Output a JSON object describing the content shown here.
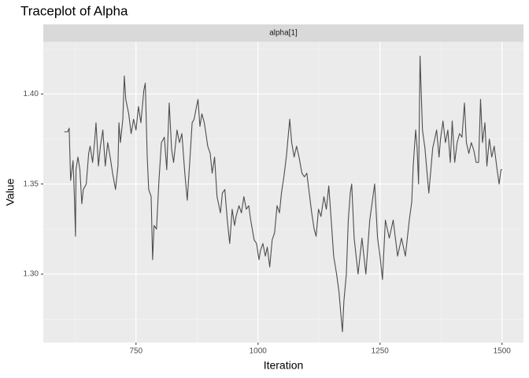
{
  "chart_data": {
    "type": "line",
    "title": "Traceplot of Alpha",
    "facet": "alpha[1]",
    "x_label": "Iteration",
    "y_label": "Value",
    "xlim": [
      560,
      1544
    ],
    "ylim": [
      1.262,
      1.429
    ],
    "xticks": [
      750,
      1000,
      1250,
      1500
    ],
    "yticks": [
      {
        "value": 1.3,
        "label": "1.30"
      },
      {
        "value": 1.35,
        "label": "1.35"
      },
      {
        "value": 1.4,
        "label": "1.40"
      }
    ],
    "grid": true,
    "series": [
      {
        "name": "alpha[1]",
        "color": "#4d4d4d",
        "x": [
          603,
          610,
          613,
          616,
          621,
          624,
          626,
          627,
          631,
          635,
          639,
          642,
          648,
          653,
          656,
          661,
          665,
          668,
          673,
          677,
          682,
          687,
          692,
          697,
          702,
          708,
          713,
          715,
          718,
          723,
          726,
          729,
          735,
          740,
          745,
          750,
          755,
          760,
          766,
          769,
          773,
          776,
          781,
          784,
          787,
          792,
          797,
          802,
          808,
          813,
          818,
          823,
          827,
          834,
          839,
          844,
          850,
          855,
          860,
          865,
          869,
          874,
          877,
          881,
          885,
          890,
          897,
          902,
          906,
          911,
          916,
          923,
          927,
          932,
          937,
          942,
          947,
          952,
          955,
          961,
          966,
          971,
          976,
          981,
          985,
          992,
          997,
          1002,
          1005,
          1010,
          1015,
          1019,
          1024,
          1029,
          1034,
          1039,
          1044,
          1048,
          1053,
          1058,
          1065,
          1069,
          1074,
          1079,
          1084,
          1090,
          1095,
          1100,
          1105,
          1110,
          1115,
          1119,
          1124,
          1129,
          1135,
          1140,
          1145,
          1150,
          1155,
          1161,
          1166,
          1169,
          1173,
          1176,
          1181,
          1185,
          1189,
          1192,
          1197,
          1205,
          1213,
          1221,
          1229,
          1234,
          1239,
          1245,
          1250,
          1255,
          1261,
          1269,
          1277,
          1286,
          1294,
          1302,
          1310,
          1315,
          1318,
          1323,
          1326,
          1329,
          1332,
          1337,
          1342,
          1350,
          1358,
          1366,
          1371,
          1374,
          1379,
          1384,
          1389,
          1394,
          1398,
          1403,
          1408,
          1413,
          1418,
          1423,
          1427,
          1432,
          1437,
          1442,
          1447,
          1452,
          1456,
          1460,
          1465,
          1469,
          1474,
          1479,
          1484,
          1489,
          1494,
          1498,
          1500
        ],
        "values": [
          1.379,
          1.379,
          1.381,
          1.352,
          1.363,
          1.341,
          1.321,
          1.358,
          1.365,
          1.358,
          1.339,
          1.347,
          1.35,
          1.367,
          1.371,
          1.362,
          1.373,
          1.384,
          1.36,
          1.371,
          1.38,
          1.36,
          1.373,
          1.365,
          1.356,
          1.347,
          1.36,
          1.384,
          1.373,
          1.386,
          1.41,
          1.397,
          1.389,
          1.378,
          1.386,
          1.38,
          1.393,
          1.384,
          1.402,
          1.406,
          1.365,
          1.347,
          1.343,
          1.308,
          1.327,
          1.325,
          1.352,
          1.373,
          1.376,
          1.358,
          1.395,
          1.369,
          1.362,
          1.38,
          1.373,
          1.378,
          1.356,
          1.341,
          1.362,
          1.384,
          1.386,
          1.393,
          1.397,
          1.382,
          1.389,
          1.384,
          1.371,
          1.367,
          1.356,
          1.365,
          1.343,
          1.334,
          1.345,
          1.347,
          1.33,
          1.317,
          1.336,
          1.327,
          1.332,
          1.338,
          1.334,
          1.343,
          1.336,
          1.338,
          1.33,
          1.319,
          1.317,
          1.308,
          1.313,
          1.317,
          1.31,
          1.315,
          1.304,
          1.319,
          1.323,
          1.338,
          1.334,
          1.345,
          1.354,
          1.365,
          1.386,
          1.373,
          1.365,
          1.371,
          1.365,
          1.356,
          1.354,
          1.356,
          1.345,
          1.334,
          1.325,
          1.321,
          1.336,
          1.332,
          1.343,
          1.336,
          1.349,
          1.33,
          1.31,
          1.3,
          1.29,
          1.28,
          1.268,
          1.285,
          1.3,
          1.33,
          1.345,
          1.35,
          1.32,
          1.3,
          1.32,
          1.3,
          1.33,
          1.34,
          1.35,
          1.32,
          1.31,
          1.297,
          1.33,
          1.32,
          1.33,
          1.31,
          1.32,
          1.31,
          1.33,
          1.34,
          1.36,
          1.38,
          1.37,
          1.35,
          1.421,
          1.38,
          1.37,
          1.345,
          1.37,
          1.38,
          1.365,
          1.375,
          1.385,
          1.373,
          1.38,
          1.362,
          1.385,
          1.362,
          1.373,
          1.378,
          1.376,
          1.395,
          1.373,
          1.367,
          1.373,
          1.369,
          1.362,
          1.362,
          1.397,
          1.373,
          1.384,
          1.36,
          1.375,
          1.365,
          1.371,
          1.36,
          1.35,
          1.358,
          1.358
        ]
      }
    ]
  }
}
